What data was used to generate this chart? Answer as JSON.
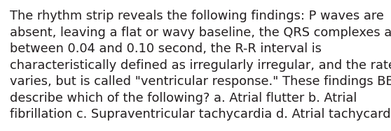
{
  "background_color": "#ffffff",
  "text_color": "#231f20",
  "font_size": 12.8,
  "font_family": "DejaVu Sans",
  "lines": [
    "The rhythm strip reveals the following findings: P waves are",
    "absent, leaving a flat or wavy baseline, the QRS complexes are",
    "between 0.04 and 0.10 second, the R-R interval is",
    "characteristically defined as irregularly irregular, and the rate",
    "varies, but is called \"ventricular response.\" These findings BEST",
    "describe which of the following? a. Atrial flutter b. Atrial",
    "fibrillation c. Supraventricular tachycardia d. Atrial tachycardia"
  ],
  "figsize": [
    5.58,
    1.88
  ],
  "dpi": 100
}
